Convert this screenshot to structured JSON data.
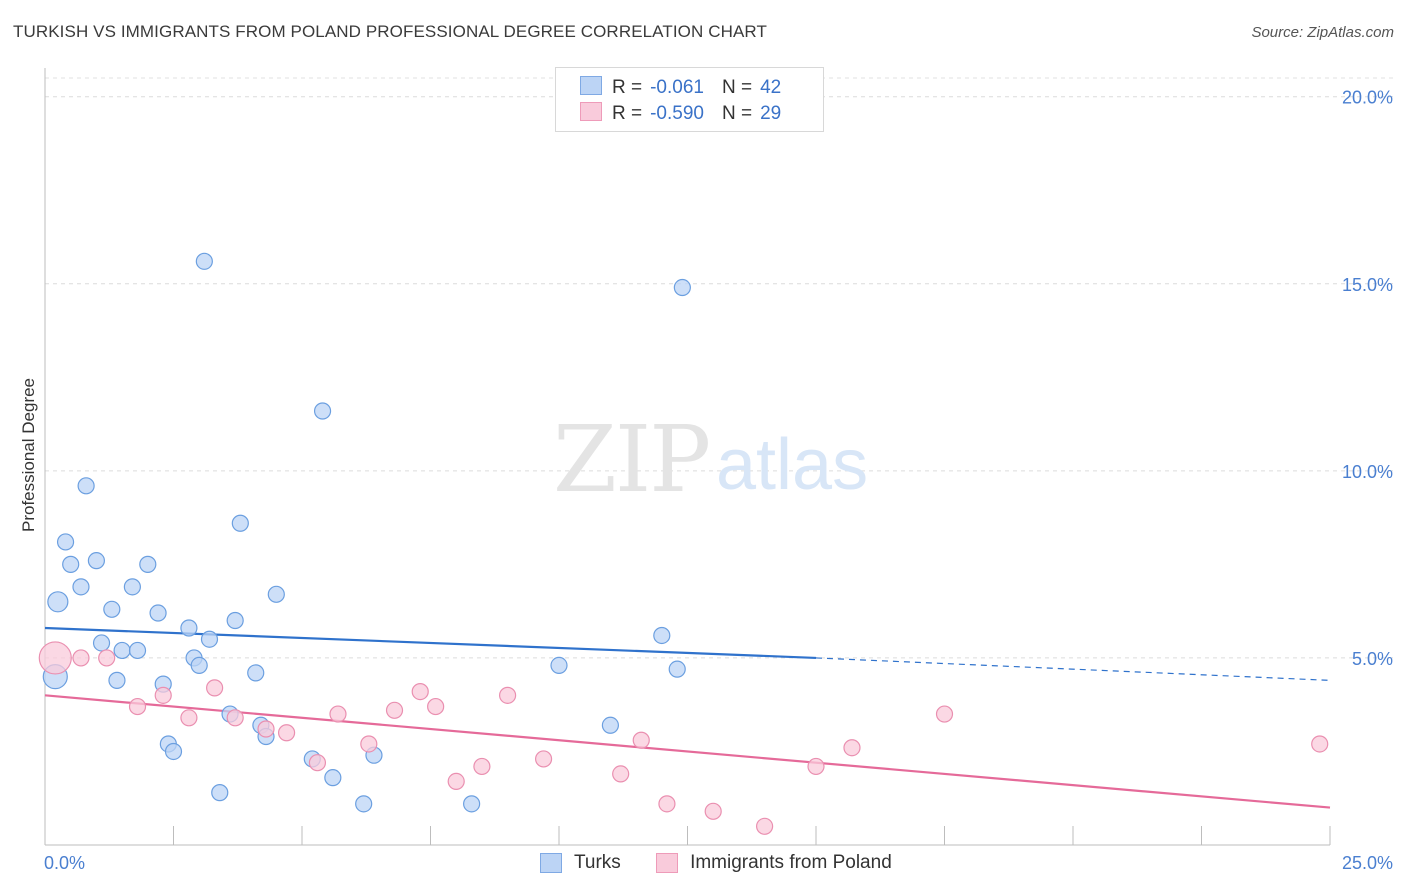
{
  "header": {
    "title": "TURKISH VS IMMIGRANTS FROM POLAND PROFESSIONAL DEGREE CORRELATION CHART",
    "source": "Source: ZipAtlas.com"
  },
  "watermark": {
    "zip": "ZIP",
    "atlas": "atlas"
  },
  "legend": {
    "rows": [
      {
        "r_label": "R =",
        "r_value": "-0.061",
        "n_label": "N =",
        "n_value": "42"
      },
      {
        "r_label": "R =",
        "r_value": "-0.590",
        "n_label": "N =",
        "n_value": "29"
      }
    ]
  },
  "bottom_legend": {
    "turks": "Turks",
    "poland": "Immigrants from Poland"
  },
  "chart_data": {
    "type": "scatter",
    "ylabel": "Professional Degree",
    "xlabel": "",
    "xlim": [
      0,
      25
    ],
    "ylim": [
      0,
      20.5
    ],
    "y_ticks": [
      5,
      10,
      15,
      20
    ],
    "y_tick_labels": [
      "5.0%",
      "10.0%",
      "15.0%",
      "20.0%"
    ],
    "x_tick_labels": [
      "0.0%",
      "25.0%"
    ],
    "grid": true,
    "colors": {
      "turks": "#6b9fe0",
      "turks_fill": "#bcd4f5",
      "turks_line": "#2f72cc",
      "poland": "#ea8fb0",
      "poland_fill": "#f9cbdb",
      "poland_line": "#e56a99",
      "label": "#4a7fd0"
    },
    "series": [
      {
        "name": "Turks",
        "points": [
          [
            0.2,
            4.5
          ],
          [
            0.25,
            6.5
          ],
          [
            0.4,
            8.1
          ],
          [
            0.5,
            7.5
          ],
          [
            0.7,
            6.9
          ],
          [
            0.8,
            9.6
          ],
          [
            1.0,
            7.6
          ],
          [
            1.1,
            5.4
          ],
          [
            1.3,
            6.3
          ],
          [
            1.4,
            4.4
          ],
          [
            1.5,
            5.2
          ],
          [
            1.7,
            6.9
          ],
          [
            1.8,
            5.2
          ],
          [
            2.0,
            7.5
          ],
          [
            2.2,
            6.2
          ],
          [
            2.3,
            4.3
          ],
          [
            2.4,
            2.7
          ],
          [
            2.5,
            2.5
          ],
          [
            2.8,
            5.8
          ],
          [
            2.9,
            5.0
          ],
          [
            3.0,
            4.8
          ],
          [
            3.1,
            15.6
          ],
          [
            3.2,
            5.5
          ],
          [
            3.4,
            1.4
          ],
          [
            3.6,
            3.5
          ],
          [
            3.7,
            6.0
          ],
          [
            3.8,
            8.6
          ],
          [
            4.1,
            4.6
          ],
          [
            4.2,
            3.2
          ],
          [
            4.3,
            2.9
          ],
          [
            4.5,
            6.7
          ],
          [
            5.2,
            2.3
          ],
          [
            5.4,
            11.6
          ],
          [
            5.6,
            1.8
          ],
          [
            6.2,
            1.1
          ],
          [
            6.4,
            2.4
          ],
          [
            8.3,
            1.1
          ],
          [
            10.0,
            4.8
          ],
          [
            11.0,
            3.2
          ],
          [
            12.0,
            5.6
          ],
          [
            12.3,
            4.7
          ],
          [
            12.4,
            14.9
          ]
        ]
      },
      {
        "name": "Immigrants from Poland",
        "points": [
          [
            0.2,
            5.0
          ],
          [
            0.7,
            5.0
          ],
          [
            1.2,
            5.0
          ],
          [
            1.8,
            3.7
          ],
          [
            2.3,
            4.0
          ],
          [
            2.8,
            3.4
          ],
          [
            3.3,
            4.2
          ],
          [
            3.7,
            3.4
          ],
          [
            4.3,
            3.1
          ],
          [
            4.7,
            3.0
          ],
          [
            5.3,
            2.2
          ],
          [
            5.7,
            3.5
          ],
          [
            6.3,
            2.7
          ],
          [
            6.8,
            3.6
          ],
          [
            7.3,
            4.1
          ],
          [
            7.6,
            3.7
          ],
          [
            8.0,
            1.7
          ],
          [
            8.5,
            2.1
          ],
          [
            9.0,
            4.0
          ],
          [
            9.7,
            2.3
          ],
          [
            11.2,
            1.9
          ],
          [
            11.6,
            2.8
          ],
          [
            12.1,
            1.1
          ],
          [
            13.0,
            0.9
          ],
          [
            14.0,
            0.5
          ],
          [
            15.0,
            2.1
          ],
          [
            15.7,
            2.6
          ],
          [
            17.5,
            3.5
          ],
          [
            24.8,
            2.7
          ]
        ]
      }
    ],
    "trendlines": [
      {
        "name": "Turks",
        "solid": [
          [
            0,
            5.8
          ],
          [
            15,
            5.0
          ]
        ],
        "dashed": [
          [
            15,
            5.0
          ],
          [
            25,
            4.4
          ]
        ]
      },
      {
        "name": "Immigrants from Poland",
        "solid": [
          [
            0,
            4.0
          ],
          [
            25,
            1.0
          ]
        ]
      }
    ]
  }
}
